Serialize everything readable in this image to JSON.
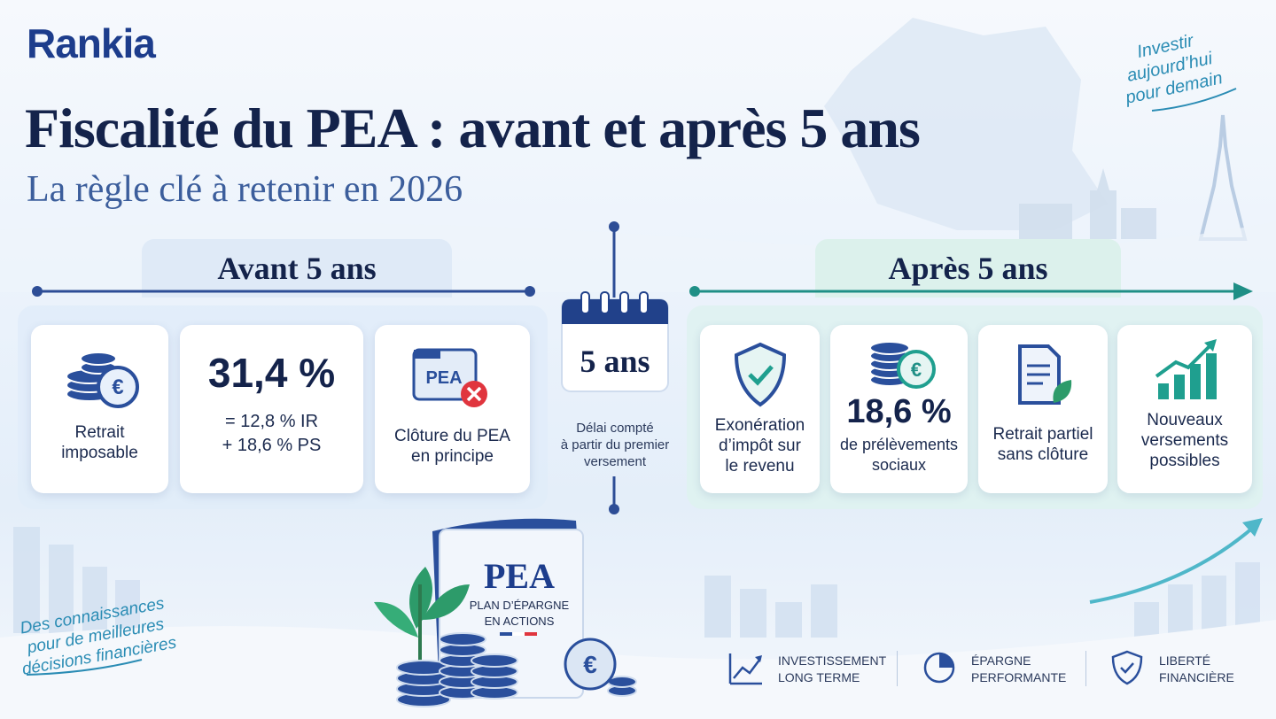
{
  "logo": "Rankia",
  "title": "Fiscalité du PEA : avant et après 5 ans",
  "subtitle": "La règle clé à retenir en 2026",
  "tagline_top": [
    "Investir",
    "aujourd’hui",
    "pour demain"
  ],
  "before": {
    "heading": "Avant 5 ans",
    "cards": [
      {
        "lines": [
          "Retrait",
          "imposable"
        ]
      },
      {
        "big": "31,4 %",
        "lines": [
          "= 12,8 % IR",
          "+ 18,6 % PS"
        ]
      },
      {
        "badge": "PEA",
        "lines": [
          "Clôture du PEA",
          "en principe"
        ]
      }
    ]
  },
  "center": {
    "label": "5 ans",
    "note": [
      "Délai compté",
      "à partir du premier",
      "versement"
    ]
  },
  "after": {
    "heading": "Après 5 ans",
    "cards": [
      {
        "lines": [
          "Exonération",
          "d’impôt sur",
          "le revenu"
        ]
      },
      {
        "big": "18,6 %",
        "lines": [
          "de prélèvements",
          "sociaux"
        ]
      },
      {
        "lines": [
          "Retrait partiel",
          "sans clôture"
        ]
      },
      {
        "lines": [
          "Nouveaux",
          "versements",
          "possibles"
        ]
      }
    ]
  },
  "book": {
    "title": "PEA",
    "lines": [
      "PLAN D’ÉPARGNE",
      "EN ACTIONS"
    ]
  },
  "coin_symbol": "€",
  "tagline_bottom": [
    "Des connaissances",
    "pour de meilleures",
    "décisions financières"
  ],
  "footer": [
    [
      "INVESTISSEMENT",
      "LONG TERME"
    ],
    [
      "ÉPARGNE",
      "PERFORMANTE"
    ],
    [
      "LIBERTÉ",
      "FINANCIÈRE"
    ]
  ]
}
